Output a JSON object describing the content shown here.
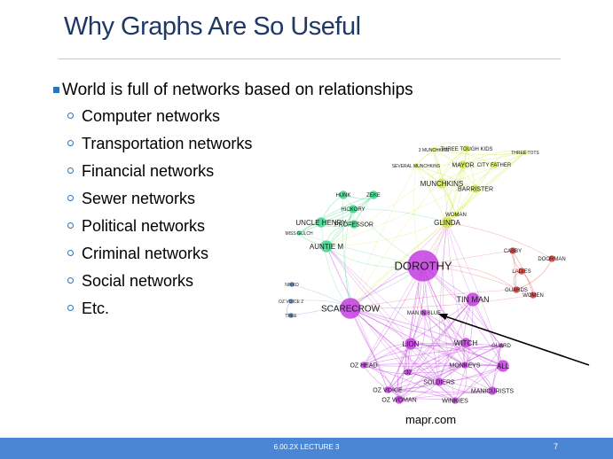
{
  "slide": {
    "title": "Why Graphs Are So Useful",
    "main_bullet": "World is full of networks based on relationships",
    "sub_bullets": [
      "Computer networks",
      "Transportation networks",
      "Financial networks",
      "Sewer networks",
      "Political networks",
      "Criminal networks",
      "Social networks",
      "Etc."
    ],
    "image_credit": "mapr.com",
    "footer_text": "6.00.2X LECTURE 3",
    "page_number": "7"
  },
  "graph": {
    "clusters": [
      {
        "name": "main",
        "color": "#c43ee0",
        "nodes": [
          {
            "label": "DOROTHY",
            "big": true
          },
          {
            "label": "SCARECROW",
            "big": true
          },
          {
            "label": "TIN MAN"
          },
          {
            "label": "LION"
          },
          {
            "label": "WITCH"
          },
          {
            "label": "MAN IN BLUE"
          },
          {
            "label": "ALL"
          },
          {
            "label": "OZ WOMAN"
          },
          {
            "label": "OZ VOICE"
          },
          {
            "label": "OZ HEAD"
          },
          {
            "label": "SOLDIERS"
          },
          {
            "label": "OZ"
          },
          {
            "label": "WINKIES"
          },
          {
            "label": "MONKEYS"
          },
          {
            "label": "MANICURISTS"
          },
          {
            "label": "GUARD"
          }
        ]
      },
      {
        "name": "munchkins",
        "color": "#d4e84a",
        "nodes": [
          {
            "label": "THREE TOUGH KIDS"
          },
          {
            "label": "MAYOR"
          },
          {
            "label": "CITY FATHER"
          },
          {
            "label": "MUNCHKINS"
          },
          {
            "label": "BARRISTER"
          },
          {
            "label": "GLINDA"
          },
          {
            "label": "WOMAN"
          },
          {
            "label": "SEVERAL MUNCHKINS"
          },
          {
            "label": "3 MUNCHKINS"
          },
          {
            "label": "THREE TOTS"
          }
        ]
      },
      {
        "name": "farm",
        "color": "#3ed28a",
        "nodes": [
          {
            "label": "HUNK"
          },
          {
            "label": "ZEKE"
          },
          {
            "label": "HICKORY"
          },
          {
            "label": "UNCLE HENRY"
          },
          {
            "label": "PROFESSOR"
          },
          {
            "label": "AUNTIE M"
          },
          {
            "label": "MISS GULCH"
          }
        ]
      },
      {
        "name": "city",
        "color": "#e23c3c",
        "nodes": [
          {
            "label": "CABBY"
          },
          {
            "label": "DOORMAN"
          },
          {
            "label": "LADIES"
          },
          {
            "label": "GUARDS"
          },
          {
            "label": "WOMEN"
          }
        ]
      },
      {
        "name": "misc",
        "color": "#4a7ad8",
        "nodes": [
          {
            "label": "NIKKO"
          },
          {
            "label": "OZ VOICE 2"
          },
          {
            "label": "TREE"
          }
        ]
      }
    ]
  },
  "colors": {
    "title": "#1f3864",
    "bullet_marker": "#2e75b6",
    "footer_bar": "#4a86d4"
  }
}
